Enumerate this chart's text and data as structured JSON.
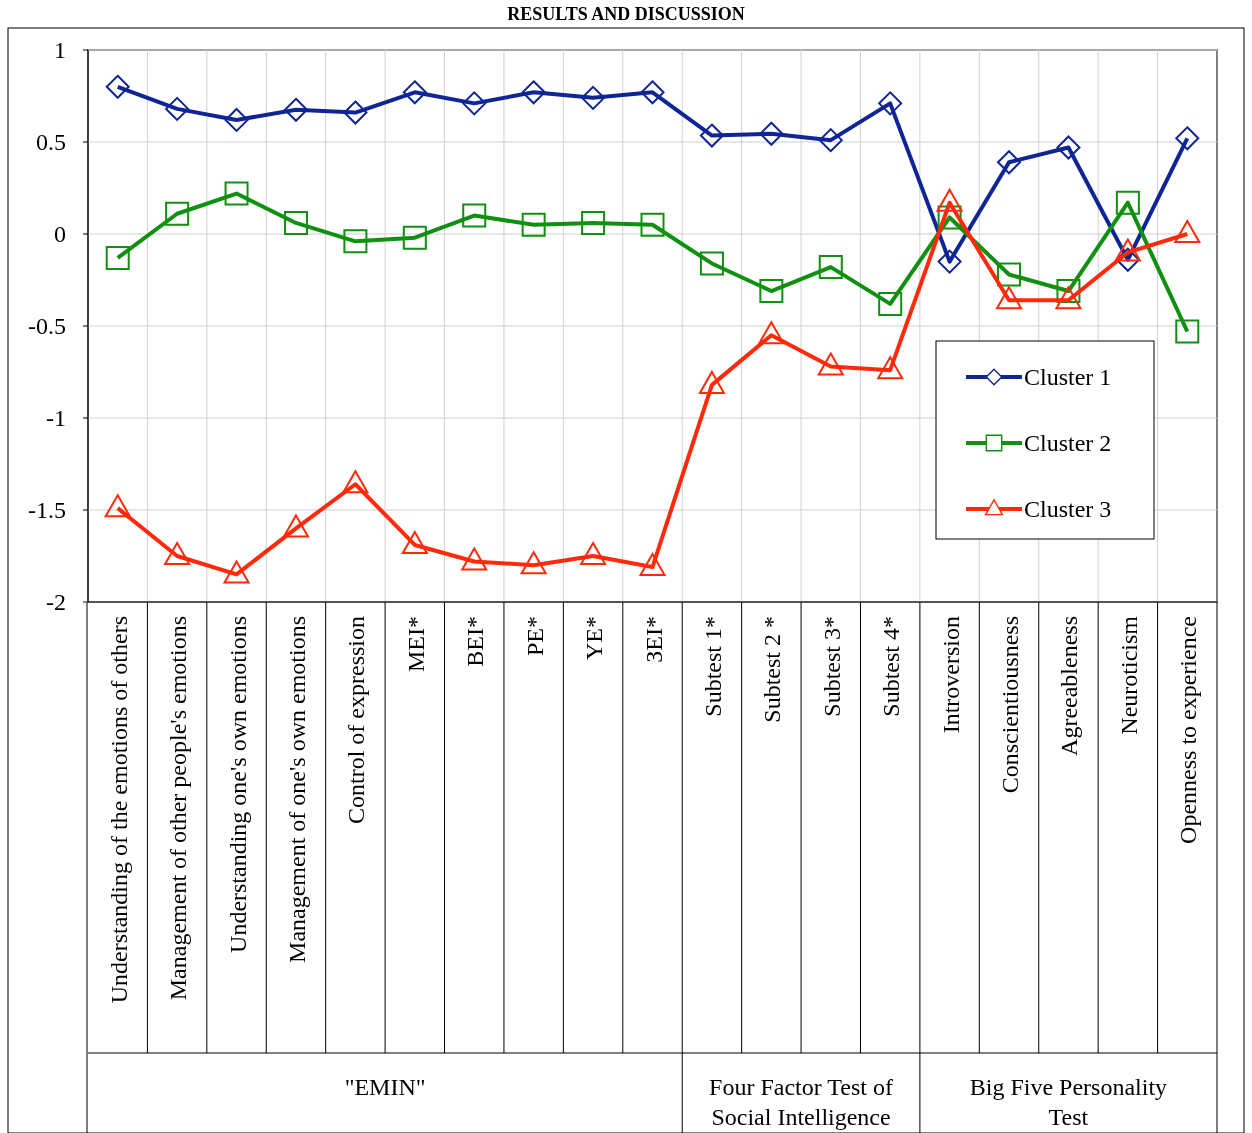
{
  "chart_data": {
    "type": "line",
    "title": "RESULTS AND DISCUSSION",
    "categories": [
      "Understanding of the emotions of others",
      "Management of other people's emotions",
      "Understanding one's own emotions",
      "Management of one's own emotions",
      "Control of expression",
      "MEI*",
      "BEI*",
      "PE*",
      "YE*",
      "ЗEI*",
      "Subtest 1*",
      "Subtest 2 *",
      "Subtest 3*",
      "Subtest 4*",
      "Introversion",
      "Conscientiousness",
      "Agreeableness",
      "Neuroticism",
      "Openness to experience"
    ],
    "series": [
      {
        "name": "Cluster 1",
        "color": "#0f2596",
        "marker": "diamond",
        "values": [
          0.8,
          0.68,
          0.62,
          0.675,
          0.66,
          0.77,
          0.71,
          0.77,
          0.74,
          0.77,
          0.535,
          0.545,
          0.51,
          0.71,
          -0.15,
          0.39,
          0.47,
          -0.14,
          0.52
        ]
      },
      {
        "name": "Cluster 2",
        "color": "#109010",
        "marker": "square",
        "values": [
          -0.13,
          0.11,
          0.22,
          0.06,
          -0.04,
          -0.02,
          0.1,
          0.05,
          0.06,
          0.05,
          -0.16,
          -0.31,
          -0.18,
          -0.38,
          0.09,
          -0.22,
          -0.31,
          0.17,
          -0.53
        ]
      },
      {
        "name": "Cluster 3",
        "color": "#ff2a0a",
        "marker": "triangle",
        "values": [
          -1.49,
          -1.75,
          -1.85,
          -1.6,
          -1.36,
          -1.69,
          -1.78,
          -1.8,
          -1.75,
          -1.81,
          -0.82,
          -0.55,
          -0.72,
          -0.74,
          0.17,
          -0.36,
          -0.36,
          -0.1,
          0
        ]
      }
    ],
    "ylim": [
      -2,
      1
    ],
    "yticks": [
      -2,
      -1.5,
      -1,
      -0.5,
      0,
      0.5,
      1
    ],
    "grid": true,
    "legend": "right",
    "line_style": "solid",
    "annotations": [
      "\"EMIN\"",
      "Four Factor Test of Social Intelligence",
      "Big Five Personality Test"
    ]
  }
}
